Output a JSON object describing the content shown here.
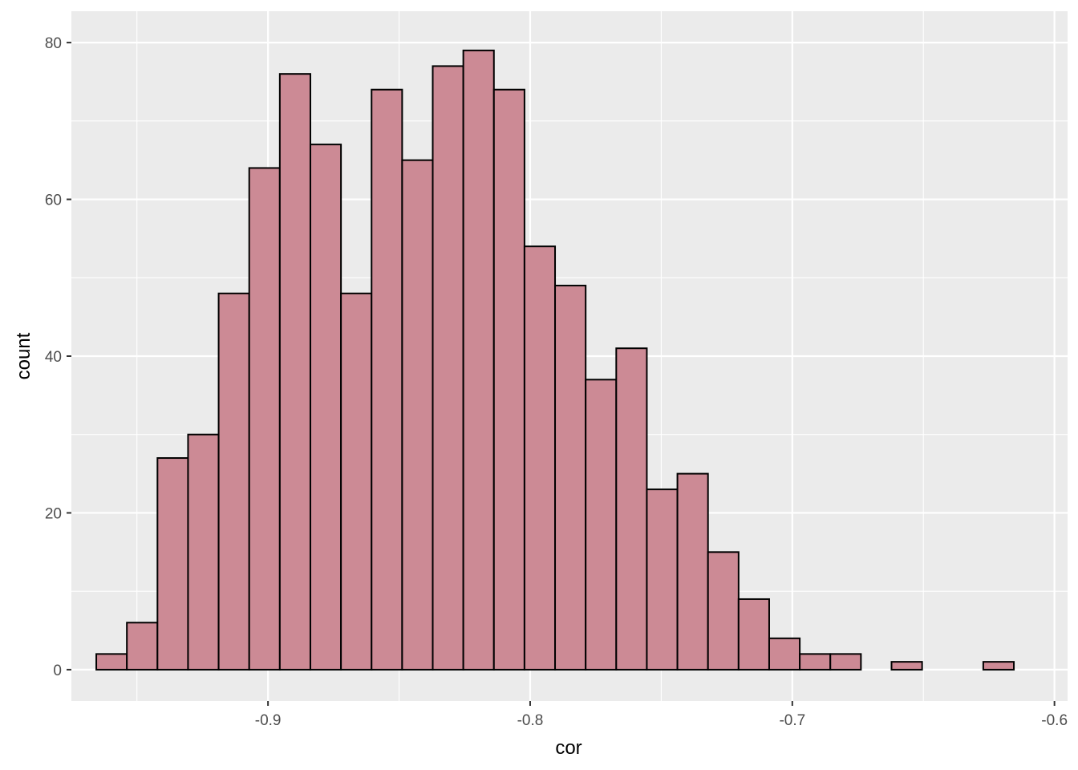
{
  "chart_data": {
    "type": "bar",
    "subtype": "histogram",
    "xlabel": "cor",
    "ylabel": "count",
    "xlim": [
      -0.975,
      -0.595
    ],
    "ylim": [
      -4,
      84
    ],
    "xticks": [
      -0.9,
      -0.8,
      -0.7,
      -0.6
    ],
    "xtick_labels": [
      "-0.9",
      "-0.8",
      "-0.7",
      "-0.6"
    ],
    "yticks": [
      0,
      20,
      40,
      60,
      80
    ],
    "ytick_labels": [
      "0",
      "20",
      "40",
      "60",
      "80"
    ],
    "bin_start": -0.9655,
    "bin_width": 0.011667,
    "values": [
      2,
      6,
      27,
      30,
      48,
      64,
      76,
      67,
      48,
      74,
      65,
      77,
      79,
      74,
      54,
      49,
      37,
      41,
      23,
      25,
      15,
      9,
      4,
      2,
      2,
      0,
      1,
      0,
      0,
      1
    ],
    "grid": true,
    "legend": "none",
    "colors": {
      "panel_background": "#ebebeb",
      "grid": "#ffffff",
      "bar_fill": "#cc8a95",
      "bar_stroke": "#000000"
    }
  }
}
